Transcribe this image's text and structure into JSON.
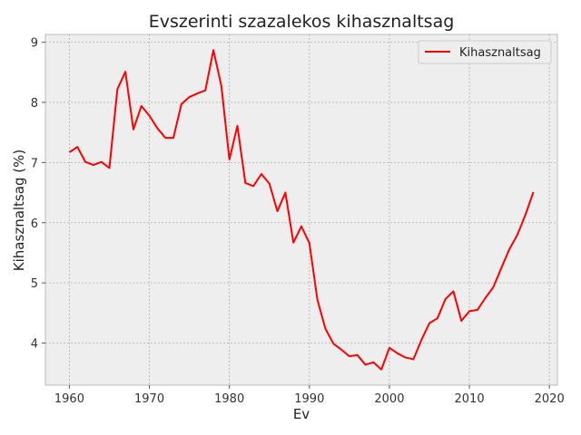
{
  "chart_data": {
    "type": "line",
    "title": "Evszerinti szazalekos kihasznaltsag",
    "xlabel": "Ev",
    "ylabel": "Kihasznaltsag (%)",
    "xlim": [
      1957,
      2021
    ],
    "ylim": [
      3.3,
      9.13
    ],
    "x_ticks": [
      1960,
      1970,
      1980,
      1990,
      2000,
      2010,
      2020
    ],
    "y_ticks": [
      4,
      5,
      6,
      7,
      8,
      9
    ],
    "grid": true,
    "legend_position": "top-right",
    "colors": {
      "line": "#ff0000",
      "plot_bg": "#eeeeee",
      "grid": "#b0b0b0",
      "axis": "#bcbcbc"
    },
    "series": [
      {
        "name": "Kihasznaltsag",
        "x": [
          1960,
          1961,
          1962,
          1963,
          1964,
          1965,
          1966,
          1967,
          1968,
          1969,
          1970,
          1971,
          1972,
          1973,
          1974,
          1975,
          1976,
          1977,
          1978,
          1979,
          1980,
          1981,
          1982,
          1983,
          1984,
          1985,
          1986,
          1987,
          1988,
          1989,
          1990,
          1991,
          1992,
          1993,
          1994,
          1995,
          1996,
          1997,
          1998,
          1999,
          2000,
          2001,
          2002,
          2003,
          2004,
          2005,
          2006,
          2007,
          2008,
          2009,
          2010,
          2011,
          2012,
          2013,
          2014,
          2015,
          2016,
          2017,
          2018
        ],
        "values": [
          7.17,
          7.26,
          7.01,
          6.96,
          7.01,
          6.91,
          8.22,
          8.51,
          7.55,
          7.94,
          7.78,
          7.57,
          7.41,
          7.41,
          7.97,
          8.09,
          8.15,
          8.2,
          8.87,
          8.27,
          7.05,
          7.61,
          6.66,
          6.61,
          6.81,
          6.65,
          6.19,
          6.5,
          5.67,
          5.94,
          5.66,
          4.72,
          4.24,
          3.99,
          3.89,
          3.78,
          3.8,
          3.64,
          3.68,
          3.56,
          3.92,
          3.83,
          3.76,
          3.73,
          4.05,
          4.33,
          4.41,
          4.73,
          4.86,
          4.37,
          4.53,
          4.55,
          4.75,
          4.93,
          5.25,
          5.56,
          5.8,
          6.13,
          6.51
        ]
      }
    ]
  }
}
